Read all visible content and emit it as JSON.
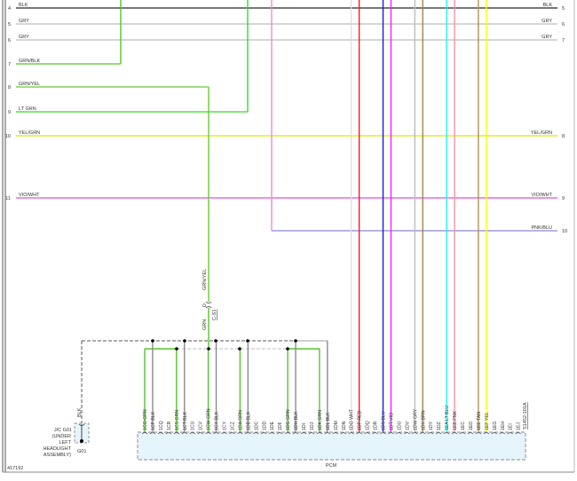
{
  "figure_id": "417192",
  "colors": {
    "BLK": "#4a4a4a",
    "GRY": "#bdbdbd",
    "GRN": "#55c32e",
    "GRN/BLK": "#55c32e",
    "GRN/YEL": "#66cc33",
    "LT GRN": "#33dd22",
    "YEL/GRN": "#dde600",
    "VIO/WHT": "#e84be0",
    "PNK/BLU": "#8a86d0",
    "PNK_TOP": "#e38fd6",
    "WHT": "#dddddd",
    "RED": "#ff1a1a",
    "BLU": "#1a1add",
    "VIO": "#ff1aff",
    "BRN": "#a3854a",
    "LT BLU": "#22f4f4",
    "PNK": "#ff8fa3",
    "TAN": "#b0935a",
    "YEL": "#ffff00",
    "splice_fill": "#e6f4fb"
  },
  "rows": [
    {
      "left_num": "4",
      "left_label": "BLK",
      "right_num": "5",
      "right_label": "BLK",
      "color": "BLK"
    },
    {
      "left_num": "5",
      "left_label": "GRY",
      "right_num": "6",
      "right_label": "GRY",
      "color": "GRY"
    },
    {
      "left_num": "6",
      "left_label": "GRY",
      "right_num": "7",
      "right_label": "GRY",
      "color": "GRY"
    },
    {
      "left_num": "7",
      "left_label": "GRN/BLK",
      "right_num": "",
      "right_label": "",
      "color": "GRN/BLK"
    },
    {
      "left_num": "8",
      "left_label": "GRN/YEL",
      "right_num": "",
      "right_label": "",
      "color": "GRN/YEL"
    },
    {
      "left_num": "9",
      "left_label": "LT GRN",
      "right_num": "",
      "right_label": "",
      "color": "LT GRN"
    },
    {
      "left_num": "10",
      "left_label": "YEL/GRN",
      "right_num": "8",
      "right_label": "YEL/GRN",
      "color": "YEL/GRN"
    },
    {
      "left_num": "11",
      "left_label": "VIO/WHT",
      "right_num": "9",
      "right_label": "VIO/WHT",
      "color": "VIO/WHT"
    },
    {
      "left_num": "",
      "left_label": "",
      "right_num": "10",
      "right_label": "PNK/BLU",
      "color": "PNK/BLU"
    }
  ],
  "connector": {
    "pin": "D",
    "name": "C-S1",
    "wire_above": "GRN/YEL",
    "wire_below": "GRN"
  },
  "ground": {
    "wire": "BLK",
    "splice_label": [
      "J/C G01",
      "(UNDER",
      "LEFT",
      "HEADLIGHT",
      "ASSEMBLY)"
    ],
    "ground_id": "G01"
  },
  "pcm": {
    "label": "PCM",
    "reference": "S1452-101A",
    "pins": [
      {
        "id": "1CO",
        "color": "GRN"
      },
      {
        "id": "1CP",
        "color": "BLK"
      },
      {
        "id": "1CQ",
        "color": ""
      },
      {
        "id": "1CR",
        "color": ""
      },
      {
        "id": "1CS",
        "color": "GRN"
      },
      {
        "id": "1CT",
        "color": "BLK"
      },
      {
        "id": "1CU",
        "color": ""
      },
      {
        "id": "1CV",
        "color": ""
      },
      {
        "id": "1CW",
        "color": "GRN"
      },
      {
        "id": "1CX",
        "color": "BLK"
      },
      {
        "id": "1CY",
        "color": ""
      },
      {
        "id": "1CZ",
        "color": ""
      },
      {
        "id": "1DA",
        "color": "GRN"
      },
      {
        "id": "1DB",
        "color": "BLK"
      },
      {
        "id": "1DC",
        "color": ""
      },
      {
        "id": "1DD",
        "color": ""
      },
      {
        "id": "1DE",
        "color": ""
      },
      {
        "id": "1DF",
        "color": ""
      },
      {
        "id": "1DG",
        "color": "GRN"
      },
      {
        "id": "1DH",
        "color": "BLK"
      },
      {
        "id": "1DI",
        "color": ""
      },
      {
        "id": "1DJ",
        "color": ""
      },
      {
        "id": "1DK",
        "color": "GRN"
      },
      {
        "id": "1DL",
        "color": "BLK"
      },
      {
        "id": "1DM",
        "color": ""
      },
      {
        "id": "1DN",
        "color": ""
      },
      {
        "id": "1DO",
        "color": "WHT"
      },
      {
        "id": "1DP",
        "color": "RED"
      },
      {
        "id": "1DQ",
        "color": ""
      },
      {
        "id": "1DR",
        "color": ""
      },
      {
        "id": "1DS",
        "color": "BLU"
      },
      {
        "id": "1DT",
        "color": "VIO"
      },
      {
        "id": "1DU",
        "color": ""
      },
      {
        "id": "1DV",
        "color": ""
      },
      {
        "id": "1DW",
        "color": "GRY"
      },
      {
        "id": "1DX",
        "color": "BRN"
      },
      {
        "id": "1DY",
        "color": ""
      },
      {
        "id": "1DZ",
        "color": ""
      },
      {
        "id": "1EA",
        "color": "LT BLU"
      },
      {
        "id": "1EB",
        "color": "PNK"
      },
      {
        "id": "1EC",
        "color": ""
      },
      {
        "id": "1ED",
        "color": ""
      },
      {
        "id": "1EE",
        "color": "TAN"
      },
      {
        "id": "1EF",
        "color": "YEL"
      },
      {
        "id": "1EG",
        "color": ""
      },
      {
        "id": "1EH",
        "color": ""
      },
      {
        "id": "1EI",
        "color": ""
      },
      {
        "id": "1EJ",
        "color": ""
      }
    ]
  }
}
